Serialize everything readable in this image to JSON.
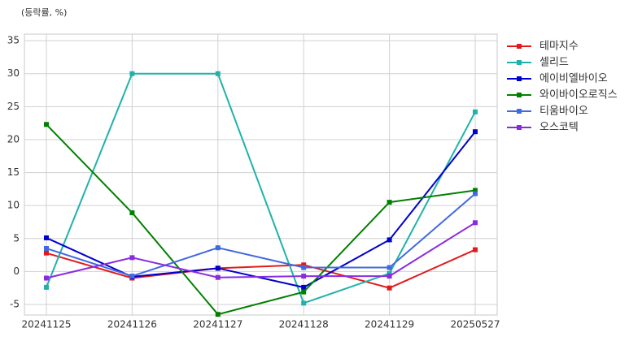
{
  "chart_data": {
    "type": "line",
    "y_label": "(등락률, %)",
    "categories": [
      "20241125",
      "20241126",
      "20241127",
      "20241128",
      "20241129",
      "20250527"
    ],
    "series": [
      {
        "name": "테마지수",
        "color": "#e31a1c",
        "values": [
          2.8,
          -1.0,
          0.5,
          1.0,
          -2.5,
          3.3
        ]
      },
      {
        "name": "셀리드",
        "color": "#20b2aa",
        "values": [
          -2.4,
          30.0,
          30.0,
          -4.8,
          -0.3,
          24.2
        ]
      },
      {
        "name": "에이비엘바이오",
        "color": "#0000cd",
        "values": [
          5.1,
          -0.8,
          0.5,
          -2.4,
          4.8,
          21.2
        ]
      },
      {
        "name": "와이바이오로직스",
        "color": "#008000",
        "values": [
          22.3,
          8.9,
          -6.5,
          -3.1,
          10.5,
          12.3
        ]
      },
      {
        "name": "티움바이오",
        "color": "#4169e1",
        "values": [
          3.5,
          -0.7,
          3.6,
          0.6,
          0.6,
          11.8
        ]
      },
      {
        "name": "오스코텍",
        "color": "#8a2be2",
        "values": [
          -1.0,
          2.1,
          -0.9,
          -0.7,
          -0.7,
          7.4
        ]
      }
    ],
    "ylim": [
      -6.6,
      36
    ],
    "yticks": [
      -5,
      0,
      5,
      10,
      15,
      20,
      25,
      30,
      35
    ],
    "grid": true,
    "legend": "right"
  }
}
